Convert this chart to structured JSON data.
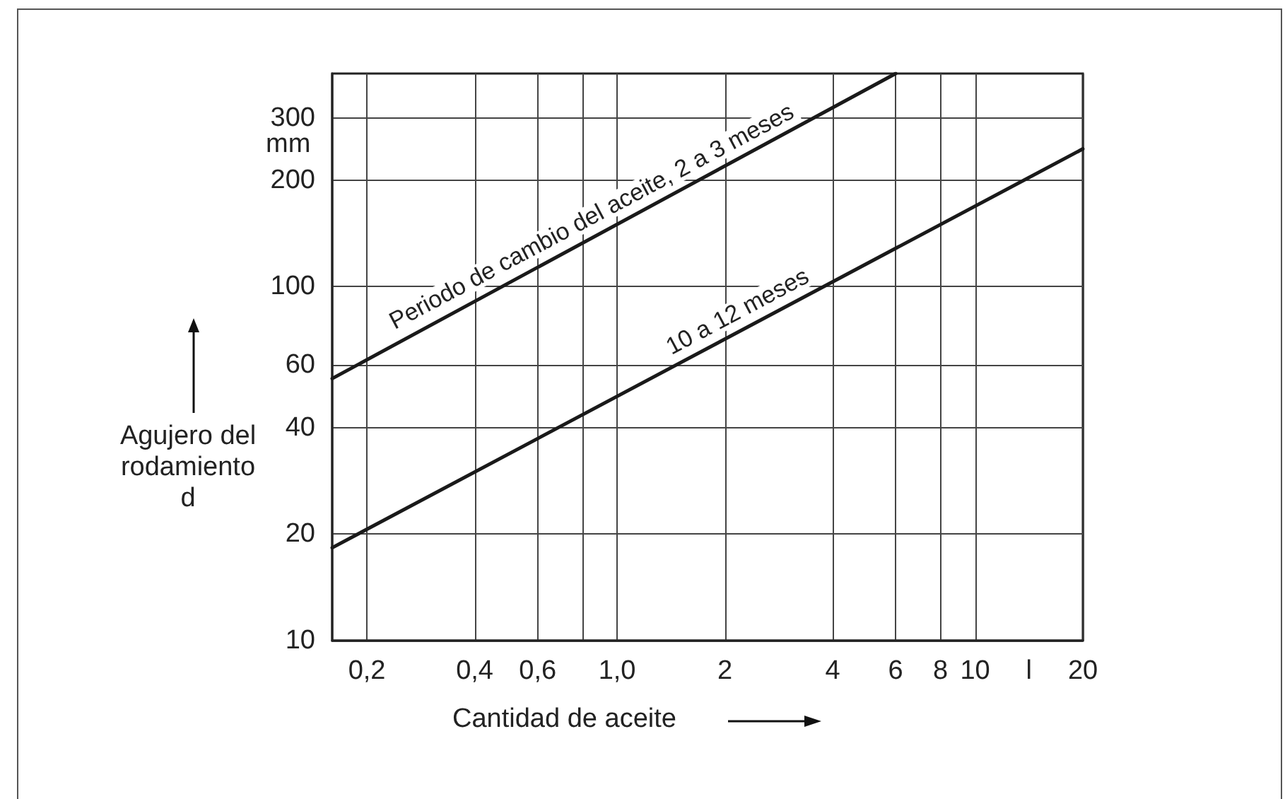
{
  "chart_data": {
    "type": "line",
    "xlabel": "Cantidad de aceite",
    "ylabel": "Agujero del rodamiento\nd",
    "log": "xy",
    "grid": true,
    "marker": "none",
    "line_style": "solid",
    "xlim": [
      0.16,
      20
    ],
    "xticks": [
      {
        "value": 0.2,
        "label": "0,2"
      },
      {
        "value": 0.4,
        "label": "0,4"
      },
      {
        "value": 0.6,
        "label": "0,6"
      },
      {
        "value": 0.8,
        "label": null
      },
      {
        "value": 1,
        "label": "1,0"
      },
      2,
      4,
      6,
      8,
      10,
      20
    ],
    "ylim": [
      10,
      400
    ],
    "yticks": [
      10,
      20,
      40,
      60,
      100,
      200,
      300
    ],
    "series": [
      {
        "color": "#1a1a1a",
        "x": [
          0.16,
          6
        ],
        "values": [
          55,
          400
        ]
      },
      {
        "color": "#1a1a1a",
        "x": [
          0.16,
          20
        ],
        "values": [
          18.3,
          245
        ]
      }
    ],
    "annotations": [
      "mm",
      "l",
      {
        "text": "Periodo de cambio del aceite, 2 a 3 meses",
        "x": 0.9,
        "y": 141
      },
      {
        "text": "10 a 12 meses",
        "x": 2.3,
        "y": 76
      }
    ]
  }
}
